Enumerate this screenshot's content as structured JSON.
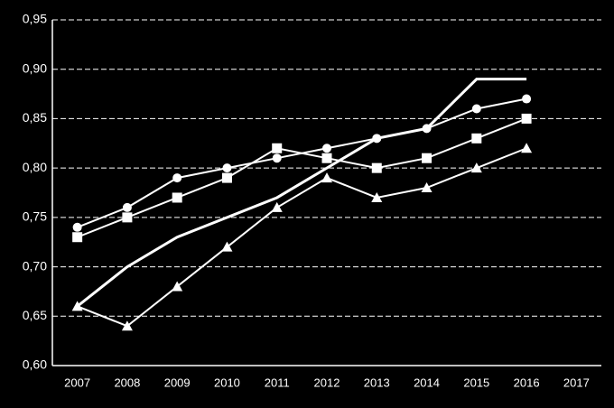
{
  "chart_data": {
    "type": "line",
    "categories": [
      "2007",
      "2008",
      "2009",
      "2010",
      "2011",
      "2012",
      "2013",
      "2014",
      "2015",
      "2016",
      "2017"
    ],
    "series": [
      {
        "color": "#ffffff",
        "marker": "none",
        "values": [
          0.66,
          0.7,
          0.73,
          0.75,
          0.77,
          0.8,
          0.83,
          0.84,
          0.89,
          0.89,
          null
        ]
      },
      {
        "color": "#ffffff",
        "marker": "circle",
        "values": [
          0.74,
          0.76,
          0.79,
          0.8,
          0.81,
          0.82,
          0.83,
          0.84,
          0.86,
          0.87,
          null
        ]
      },
      {
        "color": "#ffffff",
        "marker": "square",
        "values": [
          0.73,
          0.75,
          0.77,
          0.79,
          0.82,
          0.81,
          0.8,
          0.81,
          0.83,
          0.85,
          null
        ]
      },
      {
        "color": "#ffffff",
        "marker": "triangle",
        "values": [
          0.66,
          0.64,
          0.68,
          0.72,
          0.76,
          0.79,
          0.77,
          0.78,
          0.8,
          0.82,
          null
        ]
      }
    ],
    "ylim": [
      0.6,
      0.95
    ],
    "yticks": [
      {
        "value": 0.6,
        "label": "0,60"
      },
      {
        "value": 0.65,
        "label": "0,65"
      },
      {
        "value": 0.7,
        "label": "0,70"
      },
      {
        "value": 0.75,
        "label": "0,75"
      },
      {
        "value": 0.8,
        "label": "0,80"
      },
      {
        "value": 0.85,
        "label": "0,85"
      },
      {
        "value": 0.9,
        "label": "0,90"
      },
      {
        "value": 0.95,
        "label": "0,95"
      }
    ],
    "grid": true,
    "background": "#000000"
  }
}
